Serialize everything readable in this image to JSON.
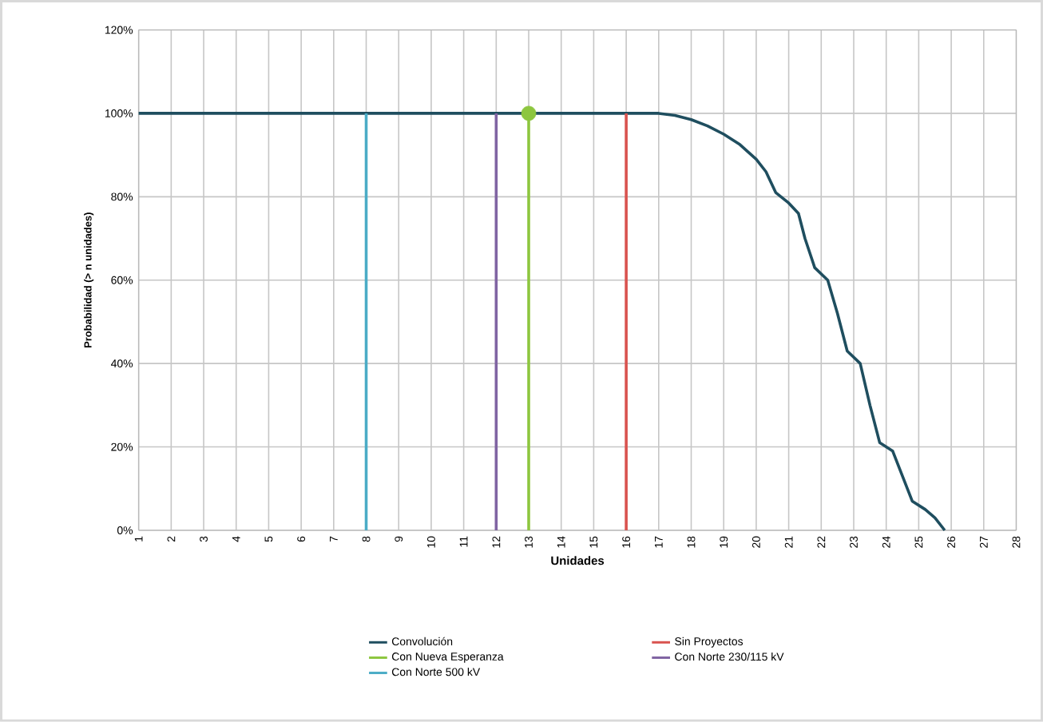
{
  "chart_data": {
    "type": "line",
    "xlabel": "Unidades",
    "ylabel": "Probabilidad (> n unidades)",
    "xlim": [
      1,
      28
    ],
    "xticks": [
      1,
      2,
      3,
      4,
      5,
      6,
      7,
      8,
      9,
      10,
      11,
      12,
      13,
      14,
      15,
      16,
      17,
      18,
      19,
      20,
      21,
      22,
      23,
      24,
      25,
      26,
      27,
      28
    ],
    "ylim": [
      0,
      120
    ],
    "yticks": [
      {
        "value": 0,
        "label": "0%"
      },
      {
        "value": 20,
        "label": "20%"
      },
      {
        "value": 40,
        "label": "40%"
      },
      {
        "value": 60,
        "label": "60%"
      },
      {
        "value": 80,
        "label": "80%"
      },
      {
        "value": 100,
        "label": "100%"
      },
      {
        "value": 120,
        "label": "120%"
      }
    ],
    "grid": true,
    "legend": "bottom",
    "series": [
      {
        "name": "Convolución",
        "color": "#1f4e5f",
        "x": [
          1,
          17,
          17.5,
          18,
          18.5,
          19,
          19.5,
          20,
          20.3,
          20.6,
          21,
          21.3,
          21.5,
          21.8,
          22.2,
          22.5,
          22.8,
          23.2,
          23.5,
          23.8,
          24.2,
          24.5,
          24.8,
          25.2,
          25.5,
          25.8
        ],
        "values": [
          100,
          100,
          99.5,
          98.5,
          97,
          95,
          92.5,
          89,
          86,
          81,
          78.5,
          76,
          70,
          63,
          60,
          52,
          43,
          40,
          30,
          21,
          19,
          13,
          7,
          5,
          3,
          0
        ]
      },
      {
        "name": "Sin Proyectos",
        "color": "#d9534f",
        "x": [
          16,
          16
        ],
        "values": [
          0,
          100
        ]
      },
      {
        "name": "Con Nueva Esperanza",
        "color": "#8dc63f",
        "x": [
          13,
          13
        ],
        "values": [
          0,
          100
        ]
      },
      {
        "name": "Con Norte 230/115 kV",
        "color": "#8064a2",
        "x": [
          12,
          12
        ],
        "values": [
          0,
          100
        ]
      },
      {
        "name": "Con Norte 500 kV",
        "color": "#4bacc6",
        "x": [
          8,
          8
        ],
        "values": [
          0,
          100
        ]
      },
      {
        "type": "scatter",
        "marker": "circle",
        "color": "#8dc63f",
        "x": [
          13
        ],
        "values": [
          100
        ]
      }
    ]
  }
}
